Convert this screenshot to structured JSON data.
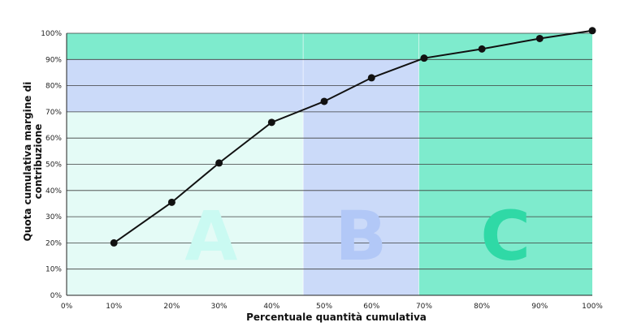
{
  "chart_data": {
    "type": "line",
    "xlabel": "Percentuale quantità cumulativa",
    "ylabel_lines": [
      "Quota cumulativa margine di",
      "contribuzione"
    ],
    "x_ticks": [
      "0%",
      "10%",
      "20%",
      "30%",
      "40%",
      "50%",
      "60%",
      "70%",
      "80%",
      "90%",
      "100%"
    ],
    "y_ticks": [
      "0%",
      "10%",
      "20%",
      "30%",
      "40%",
      "50%",
      "60%",
      "70%",
      "80%",
      "90%",
      "100%"
    ],
    "xlim": [
      0,
      100
    ],
    "ylim": [
      0,
      100
    ],
    "grid": "horizontal",
    "series": [
      {
        "x": [
          9,
          20,
          29,
          39,
          49,
          58,
          68,
          79,
          90,
          100
        ],
        "y": [
          20,
          35.5,
          50.5,
          66,
          74,
          83,
          90.5,
          94,
          98,
          101
        ]
      }
    ],
    "zones": [
      {
        "label": "A",
        "x_end": 45,
        "y_end": 70,
        "fill": "#e4fbf6",
        "band_fill": "#cbdaf9",
        "letter_color": "#cafaf2"
      },
      {
        "label": "B",
        "x_end": 67,
        "y_end": 90,
        "fill": "#cbdaf9",
        "band_fill": "#cbdaf9",
        "letter_color": "#b2c8f7"
      },
      {
        "label": "C",
        "x_end": 100,
        "y_end": 100,
        "fill": "#7eebcd",
        "band_fill": "#7eebcd",
        "letter_color": "#2fd9a6"
      }
    ],
    "line_color": "#111111"
  }
}
